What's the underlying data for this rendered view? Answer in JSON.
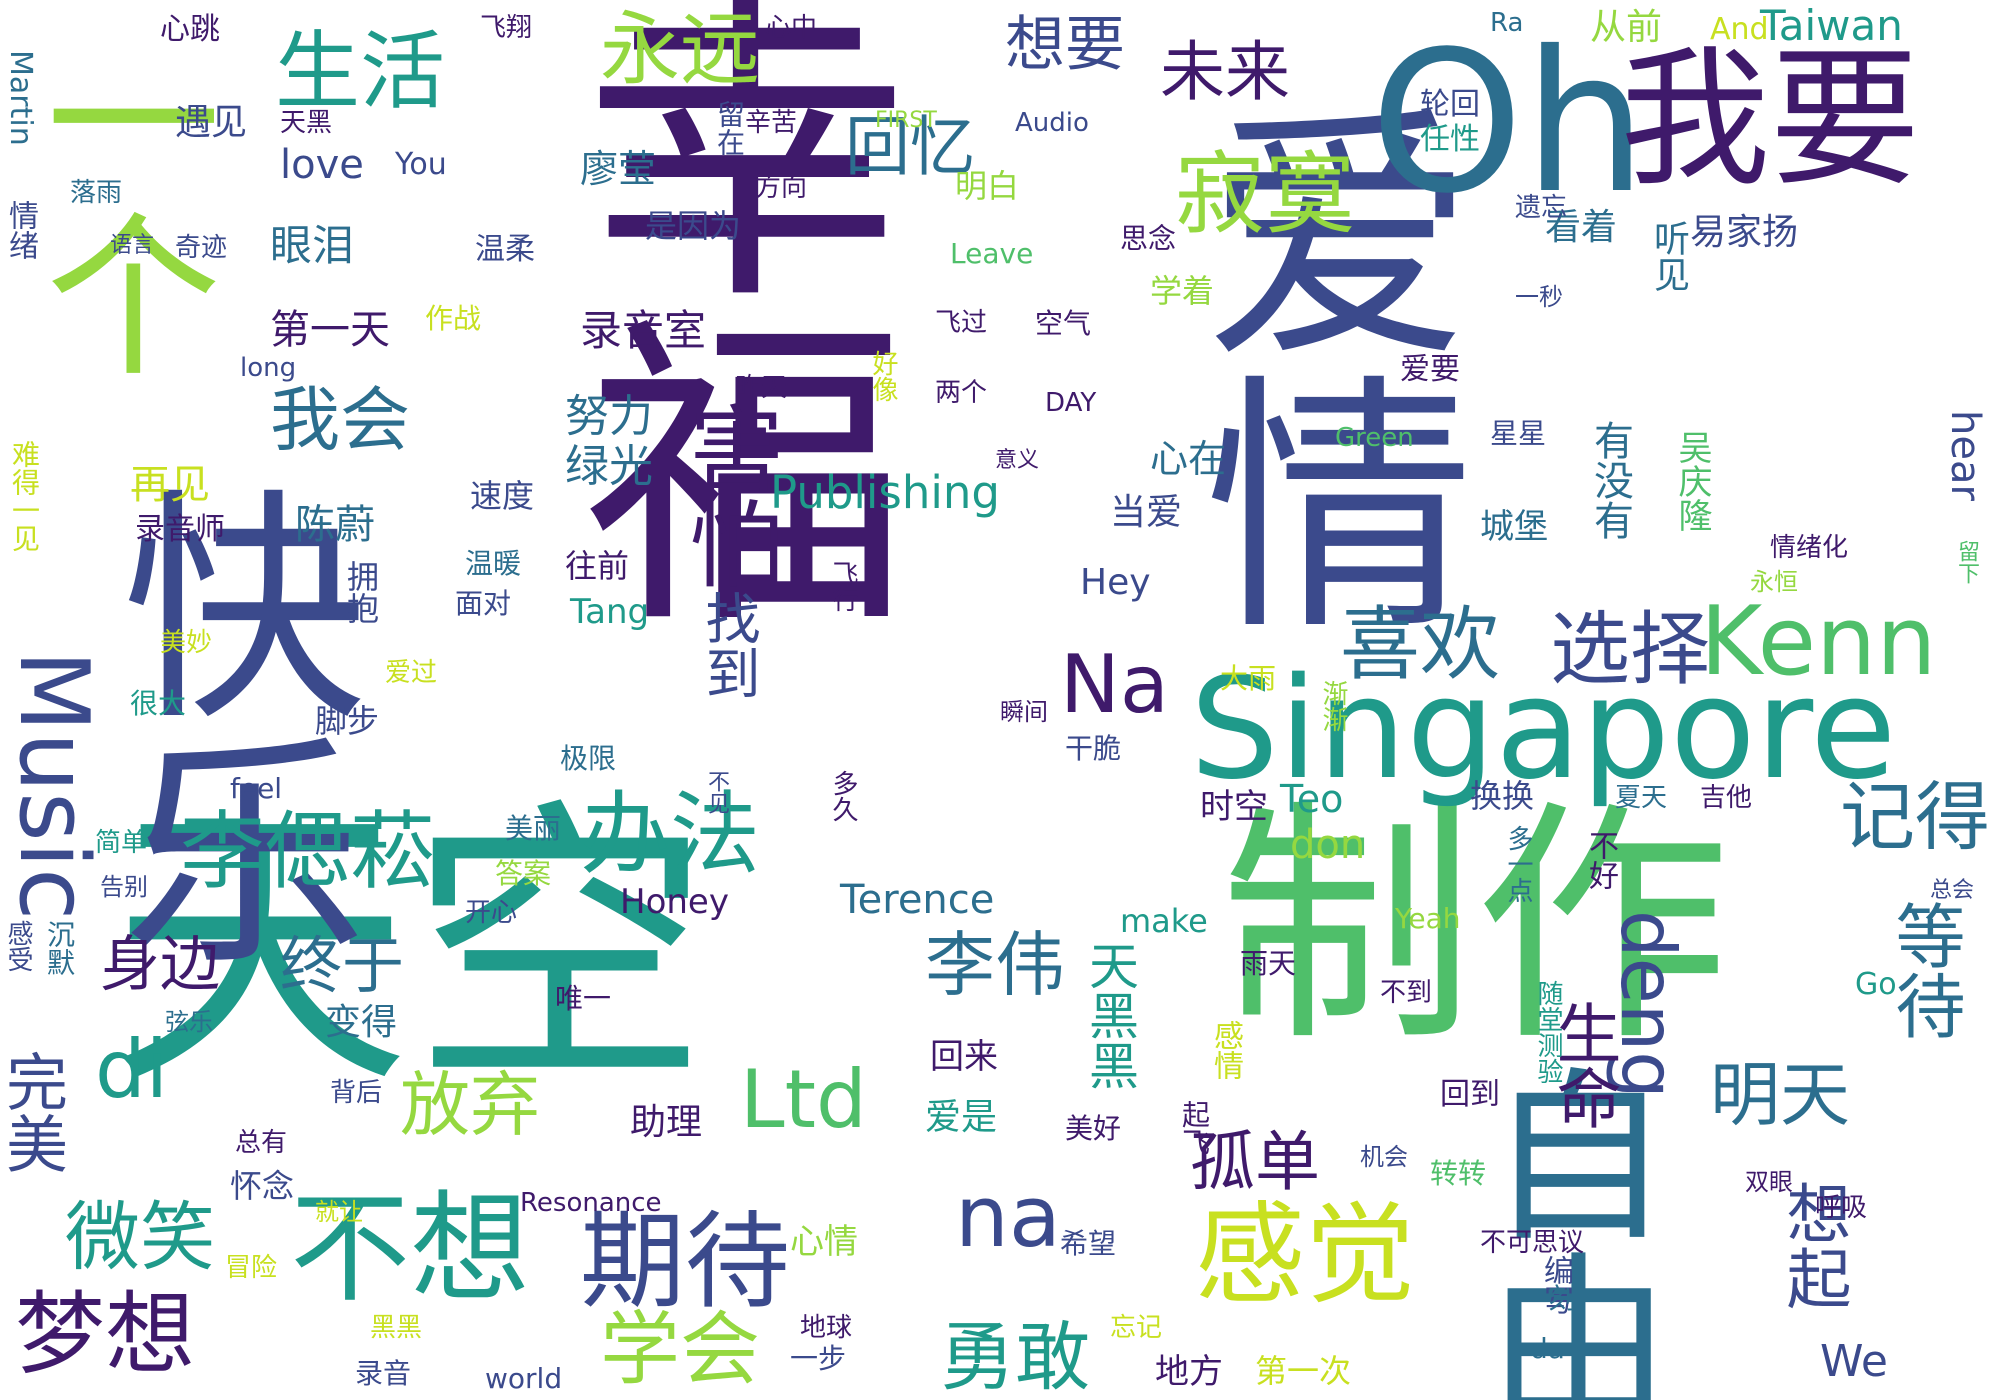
{
  "palette": {
    "deep_purple": "#3f1a6b",
    "indigo": "#3b4a8c",
    "blue": "#2c6e8e",
    "teal": "#1f9a8a",
    "green": "#4fbf6a",
    "lime": "#95d840",
    "yellow": "#c8e020"
  },
  "words": [
    "幸福",
    "爱情",
    "天空",
    "快乐",
    "制作",
    "自由",
    "Oh",
    "我要",
    "Singapore",
    "一个",
    "Music",
    "不想",
    "感觉",
    "期待",
    "梦想",
    "李偲菘",
    "害怕",
    "找到",
    "办法",
    "选择",
    "Kenn",
    "喜欢",
    "寂寞",
    "永远",
    "生活",
    "回忆",
    "想要",
    "未来",
    "Na",
    "na",
    "di",
    "Ltd",
    "deng",
    "李伟",
    "终于",
    "身边",
    "完美",
    "微笑",
    "学会",
    "勇敢",
    "孤单",
    "放弃",
    "明天",
    "等待",
    "记得",
    "生命",
    "想起",
    "Publishing",
    "录音室",
    "第一天",
    "眼泪",
    "我会",
    "努力",
    "绿光",
    "再见",
    "陈蔚",
    "心在",
    "当爱",
    "城堡",
    "有没有",
    "听见",
    "吴庆隆",
    "hear",
    "Taiwan",
    "从前",
    "And",
    "Ra",
    "心跳",
    "飞翔",
    "心中",
    "遇见",
    "天黑",
    "留在",
    "辛苦",
    "轮回",
    "任性",
    "love",
    "You",
    "廖莹",
    "明白",
    "Audio",
    "FIRST",
    "方向",
    "是因为",
    "温柔",
    "看着",
    "易家扬",
    "思念",
    "遗忘",
    "Leave",
    "学着",
    "飞过",
    "空气",
    "一秒",
    "作战",
    "long",
    "昨天",
    "好像",
    "两个",
    "DAY",
    "爱要",
    "Green",
    "星星",
    "意义",
    "速度",
    "录音师",
    "温暖",
    "往前",
    "Tang",
    "Hey",
    "飞行",
    "面对",
    "拥抱",
    "渐渐",
    "大雨",
    "爱过",
    "美妙",
    "很大",
    "脚步",
    "瞬间",
    "干脆",
    "极限",
    "不见",
    "多久",
    "feel",
    "美丽",
    "时空",
    "Teo",
    "换换",
    "夏天",
    "吉他",
    "简单",
    "告别",
    "答案",
    "don",
    "开心",
    "Honey",
    "Terence",
    "make",
    "不好",
    "多一点",
    "Yeah",
    "总会",
    "感受",
    "沉默",
    "唯一",
    "变得",
    "弦乐",
    "雨天",
    "不到",
    "随堂测验",
    "Go",
    "回来",
    "天黑黑",
    "感情",
    "背后",
    "爱是",
    "回到",
    "美好",
    "助理",
    "总有",
    "起飞",
    "怀念",
    "机会",
    "转转",
    "双眼",
    "就让",
    "呼吸",
    "Resonance",
    "冒险",
    "心情",
    "希望",
    "不可思议",
    "编写",
    "一刻",
    "黑黑",
    "地球",
    "忘记",
    "录音",
    "world",
    "一步",
    "地方",
    "第一次",
    "da",
    "We",
    "Martin",
    "情绪",
    "落雨",
    "语言",
    "奇迹",
    "难得一见",
    "情绪化",
    "永恒",
    "留下"
  ]
}
